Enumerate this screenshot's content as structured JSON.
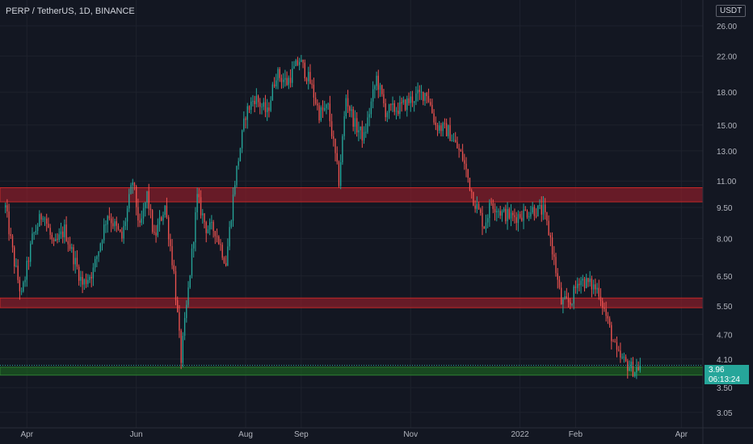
{
  "header": {
    "symbol": "PERP / TetherUS, 1D, BINANCE",
    "unit": "USDT"
  },
  "price_tag": {
    "price": "3.96",
    "countdown": "06:13:24"
  },
  "colors": {
    "background": "#131722",
    "up": "#26a69a",
    "down": "#ef5350",
    "resistance_zone": "#8b1e2a",
    "support_zone": "#1b5e20",
    "axis_text": "#b2b5be"
  },
  "chart_data": {
    "type": "candlestick",
    "title": "",
    "y_scale": "log",
    "ylim": [
      2.8,
      30
    ],
    "y_ticks": [
      "26.00",
      "22.00",
      "18.00",
      "15.00",
      "13.00",
      "11.00",
      "9.50",
      "8.00",
      "6.50",
      "5.50",
      "4.70",
      "4.10",
      "3.50",
      "3.05"
    ],
    "x_ticks": [
      "Apr",
      "Jun",
      "Aug",
      "Sep",
      "Nov",
      "2022",
      "Feb",
      "Apr"
    ],
    "x_tick_dates": [
      "2021-04-01",
      "2021-06-01",
      "2021-08-01",
      "2021-09-01",
      "2021-11-01",
      "2022-01-01",
      "2022-02-01",
      "2022-04-01"
    ],
    "x_range": [
      "2021-03-17",
      "2022-04-13"
    ],
    "zones": [
      {
        "type": "resistance",
        "low": 9.8,
        "high": 10.6
      },
      {
        "type": "resistance",
        "low": 5.45,
        "high": 5.75
      },
      {
        "type": "support",
        "low": 3.75,
        "high": 3.92
      }
    ],
    "last_price": 3.96,
    "price_path": [
      [
        "2021-03-20",
        9.5
      ],
      [
        "2021-03-25",
        7.0
      ],
      [
        "2021-03-29",
        5.8
      ],
      [
        "2021-04-04",
        8.0
      ],
      [
        "2021-04-10",
        9.3
      ],
      [
        "2021-04-16",
        7.6
      ],
      [
        "2021-04-22",
        8.4
      ],
      [
        "2021-05-02",
        6.2
      ],
      [
        "2021-05-08",
        6.7
      ],
      [
        "2021-05-16",
        9.2
      ],
      [
        "2021-05-24",
        8.0
      ],
      [
        "2021-05-30",
        11.0
      ],
      [
        "2021-06-03",
        8.4
      ],
      [
        "2021-06-07",
        10.2
      ],
      [
        "2021-06-11",
        8.0
      ],
      [
        "2021-06-17",
        9.6
      ],
      [
        "2021-06-22",
        6.6
      ],
      [
        "2021-06-26",
        4.1
      ],
      [
        "2021-06-30",
        6.0
      ],
      [
        "2021-07-05",
        10.0
      ],
      [
        "2021-07-10",
        8.5
      ],
      [
        "2021-07-15",
        8.4
      ],
      [
        "2021-07-21",
        7.0
      ],
      [
        "2021-07-26",
        11.0
      ],
      [
        "2021-08-01",
        16.0
      ],
      [
        "2021-08-06",
        17.5
      ],
      [
        "2021-08-13",
        16.0
      ],
      [
        "2021-08-18",
        20.0
      ],
      [
        "2021-08-24",
        19.0
      ],
      [
        "2021-08-31",
        21.5
      ],
      [
        "2021-09-06",
        19.0
      ],
      [
        "2021-09-11",
        16.0
      ],
      [
        "2021-09-16",
        16.5
      ],
      [
        "2021-09-22",
        11.0
      ],
      [
        "2021-09-26",
        17.5
      ],
      [
        "2021-10-01",
        15.0
      ],
      [
        "2021-10-06",
        14.0
      ],
      [
        "2021-10-13",
        19.5
      ],
      [
        "2021-10-18",
        16.2
      ],
      [
        "2021-10-26",
        16.5
      ],
      [
        "2021-11-03",
        17.5
      ],
      [
        "2021-11-10",
        18.0
      ],
      [
        "2021-11-15",
        15.0
      ],
      [
        "2021-11-22",
        14.5
      ],
      [
        "2021-11-30",
        12.5
      ],
      [
        "2021-12-06",
        10.0
      ],
      [
        "2021-12-12",
        8.6
      ],
      [
        "2021-12-16",
        9.8
      ],
      [
        "2021-12-22",
        9.2
      ],
      [
        "2021-12-28",
        9.0
      ],
      [
        "2022-01-03",
        9.2
      ],
      [
        "2022-01-08",
        9.4
      ],
      [
        "2022-01-14",
        9.3
      ],
      [
        "2022-01-18",
        8.0
      ],
      [
        "2022-01-24",
        5.6
      ],
      [
        "2022-01-29",
        5.6
      ],
      [
        "2022-02-03",
        6.4
      ],
      [
        "2022-02-09",
        6.2
      ],
      [
        "2022-02-14",
        6.0
      ],
      [
        "2022-02-18",
        5.2
      ],
      [
        "2022-02-24",
        4.2
      ],
      [
        "2022-03-01",
        4.0
      ],
      [
        "2022-03-06",
        3.85
      ],
      [
        "2022-03-09",
        3.96
      ]
    ]
  }
}
